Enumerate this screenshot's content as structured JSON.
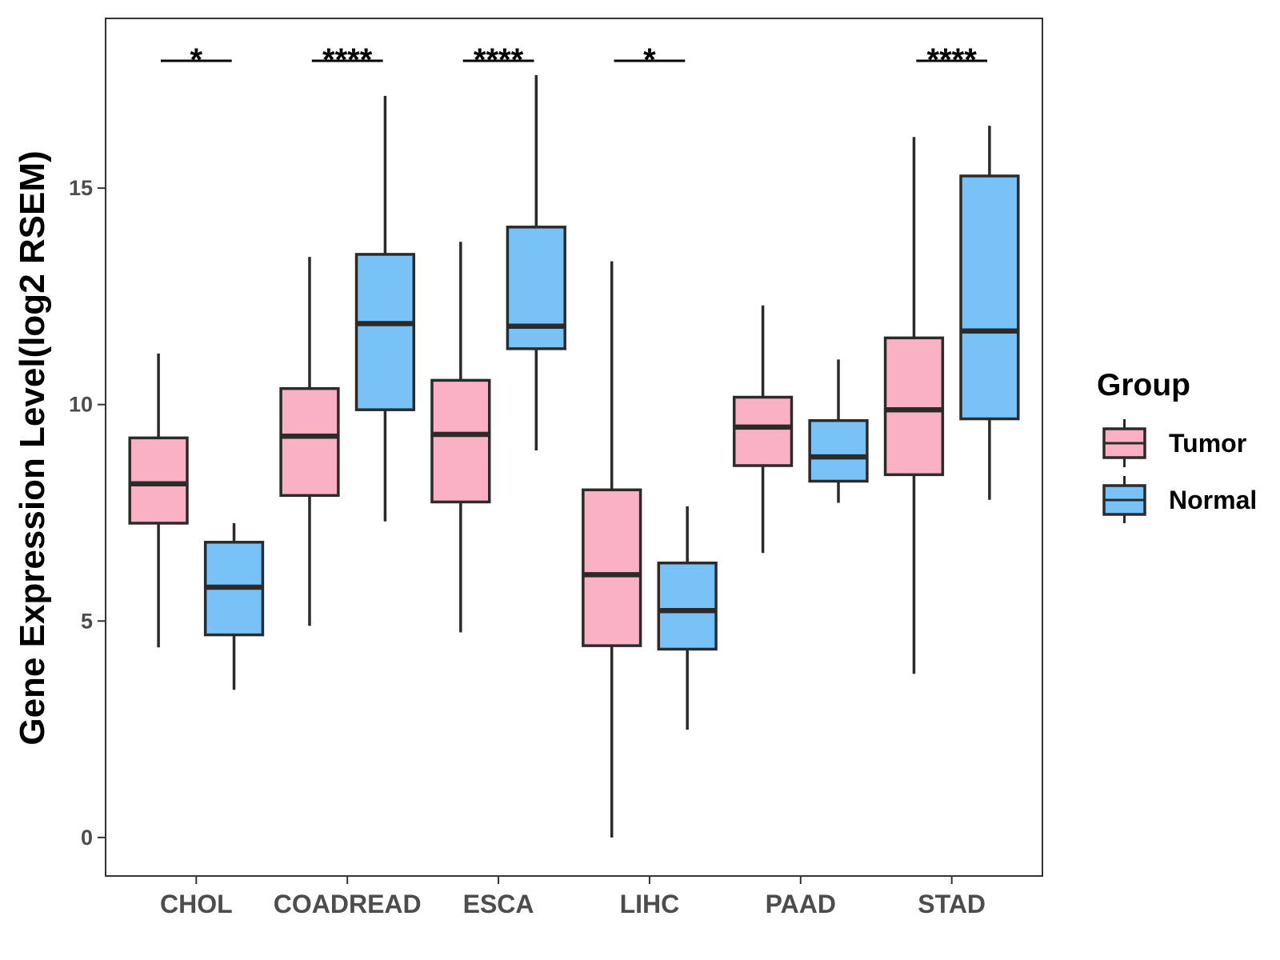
{
  "chart_data": {
    "type": "boxplot",
    "ylabel": "Gene Expression Level(log2 RSEM)",
    "ylim": [
      -0.89,
      18.92
    ],
    "yticks": [
      0,
      5,
      10,
      15
    ],
    "grid": false,
    "categories": [
      "CHOL",
      "COADREAD",
      "ESCA",
      "LIHC",
      "PAAD",
      "STAD"
    ],
    "legend": {
      "title": "Group",
      "position": "right"
    },
    "outline_color": "#2B2B2B",
    "series": [
      {
        "name": "Tumor",
        "color": "#FAB1C3",
        "boxes": [
          {
            "whisker_low": 4.39,
            "q1": 7.26,
            "median": 8.17,
            "q3": 9.23,
            "whisker_high": 11.18
          },
          {
            "whisker_low": 4.89,
            "q1": 7.9,
            "median": 9.27,
            "q3": 10.37,
            "whisker_high": 13.41
          },
          {
            "whisker_low": 4.74,
            "q1": 7.75,
            "median": 9.31,
            "q3": 10.56,
            "whisker_high": 13.76
          },
          {
            "whisker_low": 0.0,
            "q1": 4.43,
            "median": 6.07,
            "q3": 8.03,
            "whisker_high": 13.31
          },
          {
            "whisker_low": 6.57,
            "q1": 8.59,
            "median": 9.48,
            "q3": 10.17,
            "whisker_high": 12.29
          },
          {
            "whisker_low": 3.78,
            "q1": 8.38,
            "median": 9.88,
            "q3": 11.54,
            "whisker_high": 16.18
          }
        ]
      },
      {
        "name": "Normal",
        "color": "#78C2F8",
        "boxes": [
          {
            "whisker_low": 3.41,
            "q1": 4.68,
            "median": 5.78,
            "q3": 6.82,
            "whisker_high": 7.26
          },
          {
            "whisker_low": 7.3,
            "q1": 9.88,
            "median": 11.87,
            "q3": 13.47,
            "whisker_high": 17.13
          },
          {
            "whisker_low": 8.94,
            "q1": 11.29,
            "median": 11.81,
            "q3": 14.1,
            "whisker_high": 17.61
          },
          {
            "whisker_low": 2.49,
            "q1": 4.35,
            "median": 5.24,
            "q3": 6.34,
            "whisker_high": 7.65
          },
          {
            "whisker_low": 7.73,
            "q1": 8.23,
            "median": 8.79,
            "q3": 9.63,
            "whisker_high": 11.04
          },
          {
            "whisker_low": 7.8,
            "q1": 9.67,
            "median": 11.7,
            "q3": 15.28,
            "whisker_high": 16.44
          }
        ]
      }
    ],
    "significance": [
      "*",
      "****",
      "****",
      "*",
      "",
      "****"
    ]
  }
}
